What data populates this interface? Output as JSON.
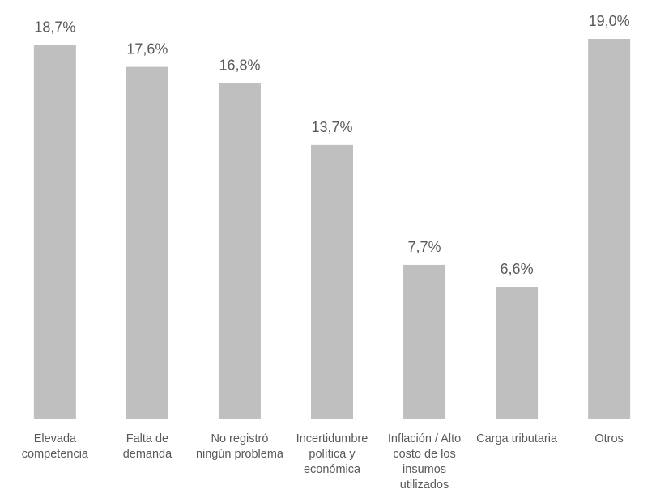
{
  "chart_data": {
    "type": "bar",
    "categories": [
      "Elevada competencia",
      "Falta de demanda",
      "No registró ningún problema",
      "Incertidumbre política y económica",
      "Inflación / Alto costo de los insumos utilizados",
      "Carga tributaria",
      "Otros"
    ],
    "values": [
      18.7,
      17.6,
      16.8,
      13.7,
      7.7,
      6.6,
      19.0
    ],
    "value_labels": [
      "18,7%",
      "17,6%",
      "16,8%",
      "13,7%",
      "7,7%",
      "6,6%",
      "19,0%"
    ],
    "color": "#bfbfbf"
  }
}
